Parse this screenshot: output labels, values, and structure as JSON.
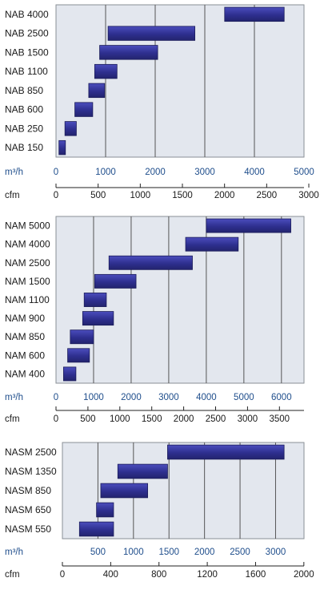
{
  "chart_data": [
    {
      "type": "bar",
      "orientation": "horizontal-range",
      "categories": [
        "NAB 4000",
        "NAB 2500",
        "NAB 1500",
        "NAB 1100",
        "NAB 850",
        "NAB 600",
        "NAB 250",
        "NAB 150"
      ],
      "ranges_m3h": [
        [
          3400,
          4600
        ],
        [
          1050,
          2800
        ],
        [
          880,
          2050
        ],
        [
          780,
          1230
        ],
        [
          660,
          980
        ],
        [
          380,
          740
        ],
        [
          180,
          410
        ],
        [
          60,
          190
        ]
      ],
      "x_unit": "m³/h",
      "x_ticks": [
        0,
        1000,
        2000,
        3000,
        4000,
        5000
      ],
      "xlim": [
        0,
        5000
      ],
      "secondary_unit": "cfm",
      "secondary_ticks": [
        0,
        500,
        1000,
        1500,
        2000,
        2500,
        3000
      ],
      "grid": true,
      "title": "",
      "xlabel": "",
      "ylabel": ""
    },
    {
      "type": "bar",
      "orientation": "horizontal-range",
      "categories": [
        "NAM 5000",
        "NAM 4000",
        "NAM 2500",
        "NAM 1500",
        "NAM 1100",
        "NAM 900",
        "NAM 850",
        "NAM 600",
        "NAM 400"
      ],
      "ranges_m3h": [
        [
          4000,
          6250
        ],
        [
          3450,
          4850
        ],
        [
          1410,
          3630
        ],
        [
          1030,
          2130
        ],
        [
          750,
          1340
        ],
        [
          710,
          1530
        ],
        [
          380,
          1000
        ],
        [
          310,
          890
        ],
        [
          200,
          530
        ]
      ],
      "x_unit": "m³/h",
      "x_ticks": [
        0,
        1000,
        2000,
        3000,
        4000,
        5000,
        6000
      ],
      "xlim": [
        0,
        6600
      ],
      "secondary_unit": "cfm",
      "secondary_ticks": [
        0,
        500,
        1000,
        1500,
        2000,
        2500,
        3000,
        3500
      ],
      "grid": true,
      "title": "",
      "xlabel": "",
      "ylabel": ""
    },
    {
      "type": "bar",
      "orientation": "horizontal-range",
      "categories": [
        "NASM 2500",
        "NASM 1350",
        "NASM 850",
        "NASM 650",
        "NASM 550"
      ],
      "ranges_m3h": [
        [
          1480,
          3120
        ],
        [
          780,
          1480
        ],
        [
          540,
          1200
        ],
        [
          480,
          720
        ],
        [
          240,
          720
        ]
      ],
      "x_unit": "m³/h",
      "x_ticks": [
        500,
        1000,
        1500,
        2000,
        2500,
        3000
      ],
      "xlim": [
        0,
        3400
      ],
      "secondary_unit": "cfm",
      "secondary_ticks": [
        0,
        400,
        800,
        1200,
        1600,
        2000
      ],
      "grid": true,
      "title": "",
      "xlabel": "",
      "ylabel": ""
    }
  ],
  "style": {
    "bar_fill": "#2e2f8f",
    "bar_highlight": "#5a5cc4",
    "plot_bg": "#e3e7ee",
    "grid_color": "#555555",
    "m3_tick_color": "#1f4e8c"
  }
}
